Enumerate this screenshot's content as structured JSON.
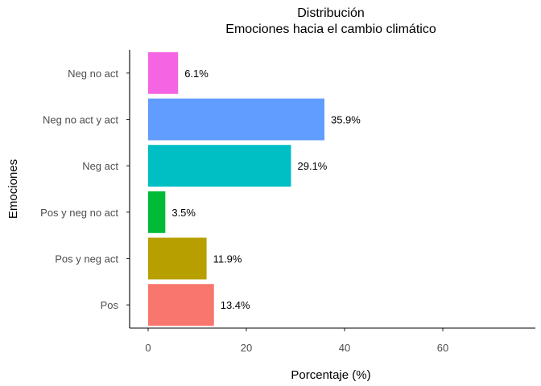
{
  "chart_data": {
    "type": "bar",
    "orientation": "horizontal",
    "title": "Distribución",
    "subtitle": "Emociones hacia el cambio climático",
    "xlabel": "Porcentaje (%)",
    "ylabel": "Emociones",
    "xlim": [
      0,
      75
    ],
    "x_ticks": [
      0,
      20,
      40,
      60
    ],
    "grid": false,
    "legend": "none",
    "categories": [
      "Pos",
      "Pos y neg act",
      "Pos y neg no act",
      "Neg act",
      "Neg no act y act",
      "Neg no act"
    ],
    "values": [
      13.4,
      11.9,
      3.5,
      29.1,
      35.9,
      6.1
    ],
    "labels": [
      "13.4%",
      "11.9%",
      "3.5%",
      "29.1%",
      "35.9%",
      "6.1%"
    ],
    "colors": [
      "#F8766D",
      "#B79F00",
      "#00BA38",
      "#00BFC4",
      "#619CFF",
      "#F564E3"
    ]
  }
}
